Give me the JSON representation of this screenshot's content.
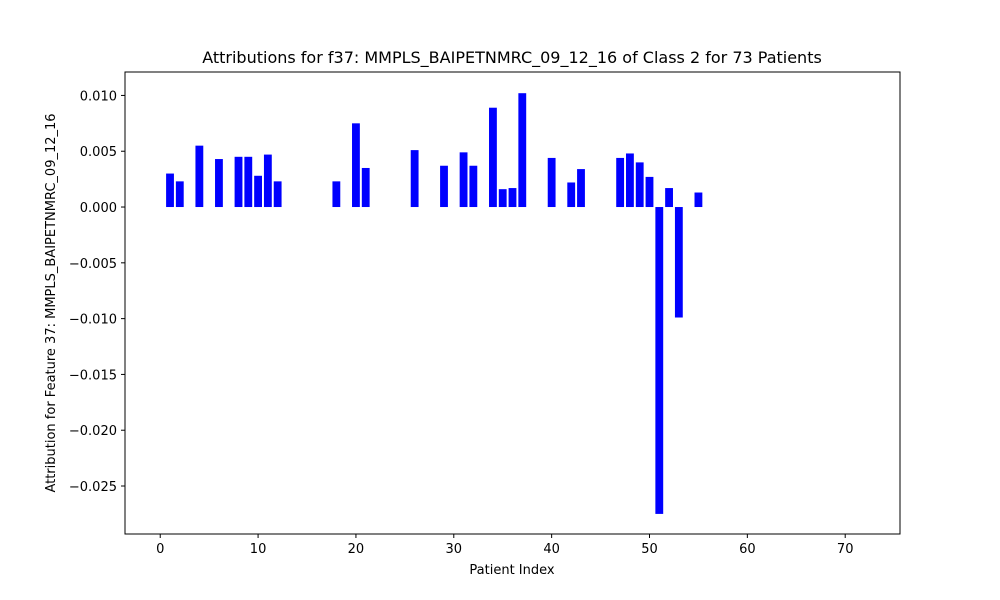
{
  "chart_data": {
    "type": "bar",
    "title": "Attributions for f37: MMPLS_BAIPETNMRC_09_12_16 of Class 2 for 73 Patients",
    "xlabel": "Patient Index",
    "ylabel": "Attribution for Feature 37: MMPLS_BAIPETNMRC_09_12_16",
    "xlim": [
      -3.6,
      75.6
    ],
    "ylim": [
      -0.0293,
      0.0121
    ],
    "xticks": [
      0,
      10,
      20,
      30,
      40,
      50,
      60,
      70
    ],
    "xtick_labels": [
      "0",
      "10",
      "20",
      "30",
      "40",
      "50",
      "60",
      "70"
    ],
    "yticks": [
      0.01,
      0.005,
      0.0,
      -0.005,
      -0.01,
      -0.015,
      -0.02,
      -0.025
    ],
    "ytick_labels": [
      "0.010",
      "0.005",
      "0.000",
      "−0.005",
      "−0.010",
      "−0.015",
      "−0.020",
      "−0.025"
    ],
    "bar_color": "#0000ff",
    "grid": false,
    "x": [
      1,
      2,
      4,
      6,
      8,
      9,
      10,
      11,
      12,
      18,
      20,
      21,
      26,
      29,
      31,
      32,
      34,
      35,
      36,
      37,
      40,
      42,
      43,
      47,
      48,
      49,
      50,
      51,
      52,
      53,
      55
    ],
    "values": [
      0.003,
      0.0023,
      0.0055,
      0.0043,
      0.0045,
      0.0045,
      0.0028,
      0.0047,
      0.0023,
      0.0023,
      0.0075,
      0.0035,
      0.0051,
      0.0037,
      0.0049,
      0.0037,
      0.0089,
      0.0016,
      0.0017,
      0.0102,
      0.0044,
      0.0022,
      0.0034,
      0.0044,
      0.0048,
      0.004,
      0.0027,
      -0.0275,
      0.0017,
      -0.0099,
      0.0013
    ]
  }
}
